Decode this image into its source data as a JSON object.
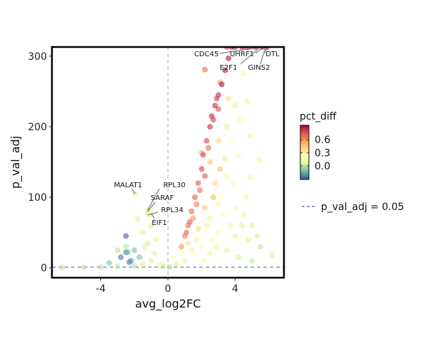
{
  "chart_data": {
    "type": "scatter",
    "title": "",
    "xlabel": "avg_log2FC",
    "ylabel": "p_val_adj",
    "xlim": [
      -6.9,
      6.9
    ],
    "ylim": [
      -14,
      313
    ],
    "xticks": [
      -4,
      0,
      4
    ],
    "yticks": [
      0,
      100,
      200,
      300
    ],
    "grid": false,
    "vline": {
      "x": 0
    },
    "hline": {
      "y": 0.05,
      "label": "p_val_adj = 0.05",
      "color": "#5555cc"
    },
    "colorbar": {
      "title": "pct_diff",
      "range": [
        -0.31,
        0.93
      ],
      "ticks": [
        "0.6",
        "0.3",
        "0.0"
      ],
      "tick_values": [
        0.6,
        0.3,
        0.0
      ],
      "palette": "Spectral (reversed)"
    },
    "legend_position": "right",
    "labels": [
      {
        "gene": "CDC45",
        "x": 5.6,
        "y": 313
      },
      {
        "gene": "UHRF1",
        "x": 5.7,
        "y": 313
      },
      {
        "gene": "DTL",
        "x": 5.9,
        "y": 313
      },
      {
        "gene": "E2F1",
        "x": 5.5,
        "y": 313
      },
      {
        "gene": "GINS2",
        "x": 5.8,
        "y": 313
      },
      {
        "gene": "MALAT1",
        "x": -1.95,
        "y": 105
      },
      {
        "gene": "RPL30",
        "x": -1.2,
        "y": 82
      },
      {
        "gene": "SARAF",
        "x": -1.2,
        "y": 80
      },
      {
        "gene": "RPL34",
        "x": -1.2,
        "y": 75
      },
      {
        "gene": "EIF1",
        "x": -1.0,
        "y": 77
      }
    ],
    "points": [
      [
        0.8,
        30,
        0.6
      ],
      [
        1.0,
        45,
        0.65
      ],
      [
        1.2,
        60,
        0.7
      ],
      [
        1.4,
        80,
        0.7
      ],
      [
        1.6,
        100,
        0.75
      ],
      [
        1.8,
        120,
        0.75
      ],
      [
        2.0,
        140,
        0.8
      ],
      [
        2.1,
        160,
        0.8
      ],
      [
        2.3,
        180,
        0.8
      ],
      [
        2.5,
        200,
        0.85
      ],
      [
        2.6,
        215,
        0.85
      ],
      [
        2.8,
        230,
        0.85
      ],
      [
        3.0,
        245,
        0.85
      ],
      [
        3.2,
        260,
        0.9
      ],
      [
        3.4,
        280,
        0.9
      ],
      [
        3.6,
        297,
        0.9
      ],
      [
        2.2,
        130,
        0.75
      ],
      [
        1.9,
        110,
        0.7
      ],
      [
        1.5,
        70,
        0.6
      ],
      [
        2.4,
        170,
        0.7
      ],
      [
        3.0,
        225,
        0.75
      ],
      [
        1.7,
        90,
        0.65
      ],
      [
        2.0,
        163,
        0.55
      ],
      [
        3.8,
        313,
        0.9
      ],
      [
        4.0,
        313,
        0.85
      ],
      [
        4.4,
        313,
        0.85
      ],
      [
        4.8,
        313,
        0.85
      ],
      [
        5.2,
        313,
        0.85
      ],
      [
        5.6,
        313,
        0.9
      ],
      [
        5.9,
        313,
        0.85
      ],
      [
        3.5,
        313,
        0.8
      ],
      [
        4.6,
        313,
        0.75
      ],
      [
        2.2,
        281,
        0.7
      ],
      [
        3.1,
        263,
        0.55
      ],
      [
        1.1,
        50,
        0.7
      ],
      [
        1.3,
        65,
        0.72
      ],
      [
        2.7,
        210,
        0.8
      ],
      [
        2.9,
        240,
        0.82
      ],
      [
        2.5,
        150,
        0.45
      ],
      [
        3.0,
        180,
        0.4
      ],
      [
        3.5,
        200,
        0.35
      ],
      [
        2.8,
        120,
        0.4
      ],
      [
        3.4,
        155,
        0.35
      ],
      [
        3.6,
        240,
        0.4
      ],
      [
        4.0,
        230,
        0.35
      ],
      [
        4.5,
        275,
        0.3
      ],
      [
        4.7,
        236,
        0.3
      ],
      [
        4.3,
        210,
        0.25
      ],
      [
        4.9,
        187,
        0.1
      ],
      [
        5.4,
        153,
        0.1
      ],
      [
        4.9,
        128,
        0.1
      ],
      [
        3.5,
        130,
        0.25
      ],
      [
        3.2,
        100,
        0.2
      ],
      [
        4.0,
        85,
        0.15
      ],
      [
        4.5,
        75,
        0.1
      ],
      [
        5.0,
        60,
        0.05
      ],
      [
        5.3,
        45,
        0.05
      ],
      [
        6.2,
        18,
        0.05
      ],
      [
        4.8,
        40,
        0.05
      ],
      [
        3.7,
        60,
        0.1
      ],
      [
        2.5,
        70,
        0.3
      ],
      [
        3.0,
        50,
        0.15
      ],
      [
        2.0,
        30,
        0.2
      ],
      [
        1.5,
        20,
        0.2
      ],
      [
        2.5,
        20,
        0.1
      ],
      [
        3.5,
        25,
        0.05
      ],
      [
        4.2,
        15,
        0.05
      ],
      [
        5.0,
        10,
        0.0
      ],
      [
        1.0,
        10,
        0.1
      ],
      [
        0.5,
        5,
        0.05
      ],
      [
        0.3,
        15,
        0.2
      ],
      [
        1.2,
        35,
        0.35
      ],
      [
        1.8,
        55,
        0.4
      ],
      [
        2.2,
        85,
        0.45
      ],
      [
        2.7,
        100,
        0.5
      ],
      [
        3.1,
        140,
        0.5
      ],
      [
        1.4,
        25,
        0.3
      ],
      [
        2.6,
        40,
        0.25
      ],
      [
        3.3,
        75,
        0.2
      ],
      [
        4.0,
        45,
        0.05
      ],
      [
        5.5,
        30,
        0.0
      ],
      [
        4.6,
        100,
        0.1
      ],
      [
        4.2,
        160,
        0.15
      ],
      [
        3.8,
        180,
        0.2
      ],
      [
        3.0,
        90,
        0.25
      ],
      [
        2.3,
        60,
        0.3
      ],
      [
        1.7,
        40,
        0.3
      ],
      [
        0.9,
        20,
        0.2
      ],
      [
        3.9,
        120,
        0.15
      ],
      [
        4.4,
        60,
        0.05
      ],
      [
        2.9,
        30,
        0.1
      ],
      [
        2.1,
        10,
        0.1
      ],
      [
        -0.5,
        5,
        0.1
      ],
      [
        -1.0,
        10,
        0.05
      ],
      [
        -1.5,
        5,
        0.05
      ],
      [
        -2.0,
        3,
        0.0
      ],
      [
        -3.0,
        2,
        0.0
      ],
      [
        -4.0,
        1,
        0.0
      ],
      [
        -5.0,
        0.5,
        0.0
      ],
      [
        -6.3,
        0.5,
        0.0
      ],
      [
        -0.8,
        20,
        0.05
      ],
      [
        -1.2,
        35,
        0.05
      ],
      [
        -1.5,
        50,
        0.05
      ],
      [
        -1.0,
        60,
        0.05
      ],
      [
        -1.8,
        70,
        0.05
      ],
      [
        -0.7,
        40,
        0.05
      ],
      [
        -1.4,
        30,
        0.05
      ],
      [
        -2.0,
        25,
        -0.1
      ],
      [
        -2.5,
        45,
        -0.3
      ],
      [
        -2.8,
        15,
        -0.25
      ],
      [
        -2.5,
        22,
        -0.2
      ],
      [
        -2.2,
        10,
        -0.2
      ],
      [
        -3.5,
        7,
        -0.1
      ],
      [
        -1.7,
        15,
        -0.1
      ],
      [
        -2.5,
        30,
        0.0
      ],
      [
        -3.0,
        25,
        0.0
      ],
      [
        -0.3,
        2,
        0.0
      ],
      [
        0.1,
        1,
        0.0
      ],
      [
        -2.4,
        22,
        -0.15
      ],
      [
        -2.3,
        8,
        -0.25
      ],
      [
        -1.95,
        105,
        0.05
      ],
      [
        -1.2,
        82,
        0.05
      ],
      [
        -1.2,
        80,
        0.05
      ],
      [
        -1.2,
        75,
        0.05
      ],
      [
        -1.0,
        77,
        0.05
      ]
    ]
  }
}
